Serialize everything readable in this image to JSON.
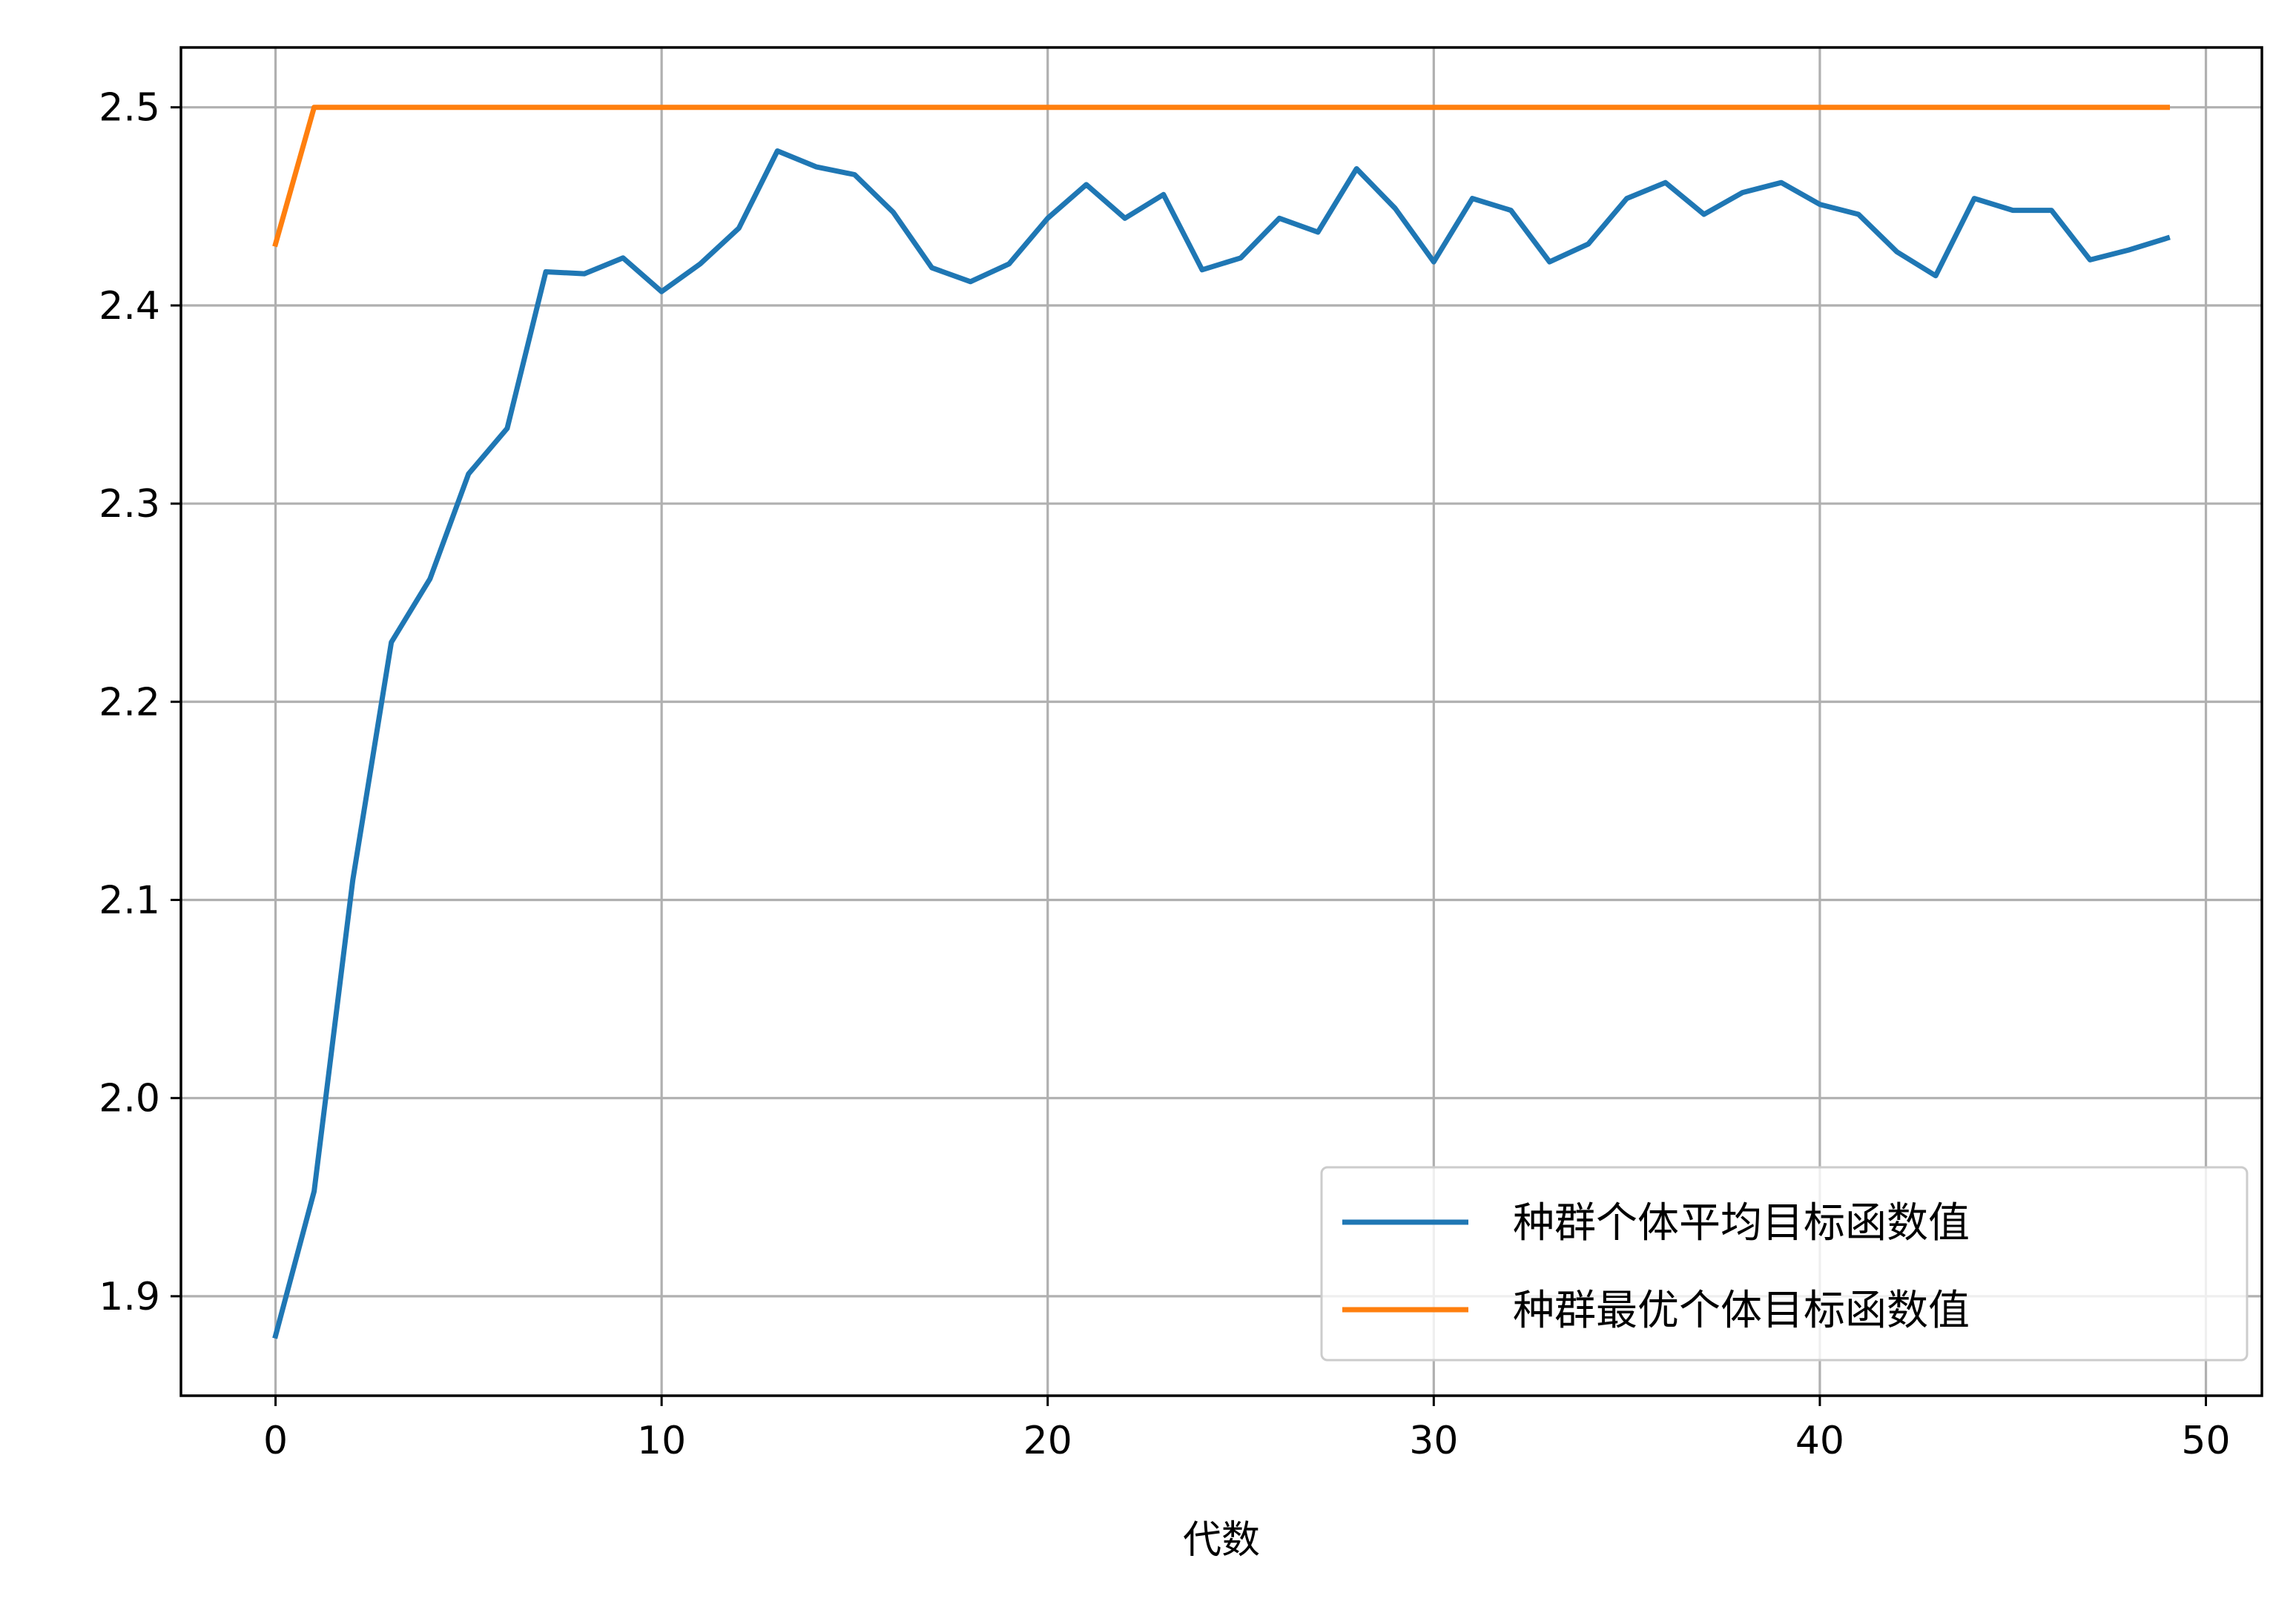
{
  "chart_data": {
    "type": "line",
    "title": "",
    "xlabel": "代数",
    "ylabel": "",
    "xlim": [
      -2.45,
      51.45
    ],
    "ylim": [
      1.8498,
      2.5302
    ],
    "xticks": [
      0,
      10,
      20,
      30,
      40,
      50
    ],
    "yticks": [
      1.9,
      2.0,
      2.1,
      2.2,
      2.3,
      2.4,
      2.5
    ],
    "xtick_labels": [
      "0",
      "10",
      "20",
      "30",
      "40",
      "50"
    ],
    "ytick_labels": [
      "1.9",
      "2.0",
      "2.1",
      "2.2",
      "2.3",
      "2.4",
      "2.5"
    ],
    "grid": true,
    "legend_position": "lower-right",
    "x": [
      0,
      1,
      2,
      3,
      4,
      5,
      6,
      7,
      8,
      9,
      10,
      11,
      12,
      13,
      14,
      15,
      16,
      17,
      18,
      19,
      20,
      21,
      22,
      23,
      24,
      25,
      26,
      27,
      28,
      29,
      30,
      31,
      32,
      33,
      34,
      35,
      36,
      37,
      38,
      39,
      40,
      41,
      42,
      43,
      44,
      45,
      46,
      47,
      48,
      49
    ],
    "series": [
      {
        "name": "种群个体平均目标函数值",
        "color": "#1f77b4",
        "values": [
          1.88,
          1.953,
          2.11,
          2.23,
          2.262,
          2.315,
          2.338,
          2.417,
          2.416,
          2.424,
          2.407,
          2.421,
          2.439,
          2.478,
          2.47,
          2.466,
          2.447,
          2.419,
          2.412,
          2.421,
          2.444,
          2.461,
          2.444,
          2.456,
          2.418,
          2.424,
          2.444,
          2.437,
          2.469,
          2.449,
          2.422,
          2.454,
          2.448,
          2.422,
          2.431,
          2.454,
          2.462,
          2.446,
          2.457,
          2.462,
          2.451,
          2.446,
          2.427,
          2.415,
          2.454,
          2.448,
          2.448,
          2.423,
          2.428,
          2.434
        ]
      },
      {
        "name": "种群最优个体目标函数值",
        "color": "#ff7f0e",
        "values": [
          2.431,
          2.5,
          2.5,
          2.5,
          2.5,
          2.5,
          2.5,
          2.5,
          2.5,
          2.5,
          2.5,
          2.5,
          2.5,
          2.5,
          2.5,
          2.5,
          2.5,
          2.5,
          2.5,
          2.5,
          2.5,
          2.5,
          2.5,
          2.5,
          2.5,
          2.5,
          2.5,
          2.5,
          2.5,
          2.5,
          2.5,
          2.5,
          2.5,
          2.5,
          2.5,
          2.5,
          2.5,
          2.5,
          2.5,
          2.5,
          2.5,
          2.5,
          2.5,
          2.5,
          2.5,
          2.5,
          2.5,
          2.5,
          2.5,
          2.5
        ]
      }
    ]
  }
}
